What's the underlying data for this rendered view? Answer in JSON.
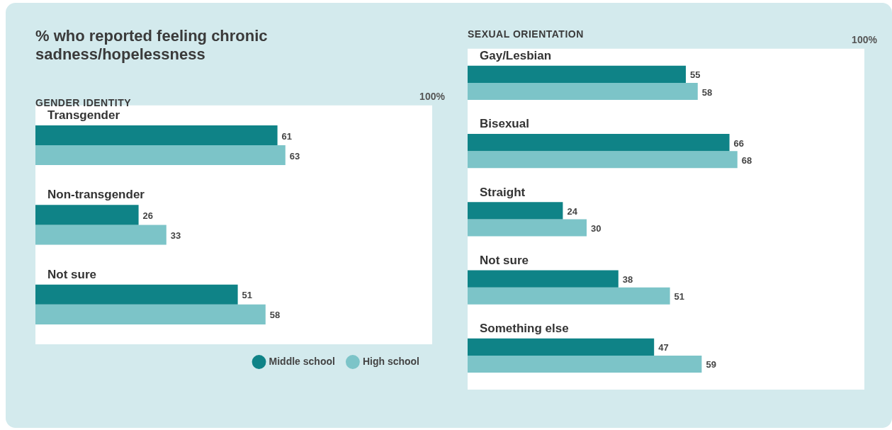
{
  "chart_data": [
    {
      "type": "bar",
      "orientation": "horizontal",
      "title": "% who reported feeling chronic sadness/hopelessness",
      "subtitle": "GENDER IDENTITY",
      "categories": [
        "Transgender",
        "Non-transgender",
        "Not sure"
      ],
      "series": [
        {
          "name": "Middle school",
          "color": "#0f8387",
          "values": [
            61,
            26,
            51
          ]
        },
        {
          "name": "High school",
          "color": "#7cc4c8",
          "values": [
            63,
            33,
            58
          ]
        }
      ],
      "xlim": [
        0,
        100
      ],
      "xticks": [
        {
          "value": 100,
          "label": "100%"
        }
      ],
      "data_labels": true,
      "legend": "bottom right"
    },
    {
      "type": "bar",
      "orientation": "horizontal",
      "title": "SEXUAL ORIENTATION",
      "categories": [
        "Gay/Lesbian",
        "Bisexual",
        "Straight",
        "Not sure",
        "Something else"
      ],
      "series": [
        {
          "color": "#0f8387",
          "values": [
            55,
            66,
            24,
            38,
            47
          ]
        },
        {
          "color": "#7cc4c8",
          "values": [
            58,
            68,
            30,
            51,
            59
          ]
        }
      ],
      "xlim": [
        0,
        100
      ],
      "xticks": [
        {
          "value": 100,
          "label": "100%"
        }
      ],
      "data_labels": true
    }
  ]
}
